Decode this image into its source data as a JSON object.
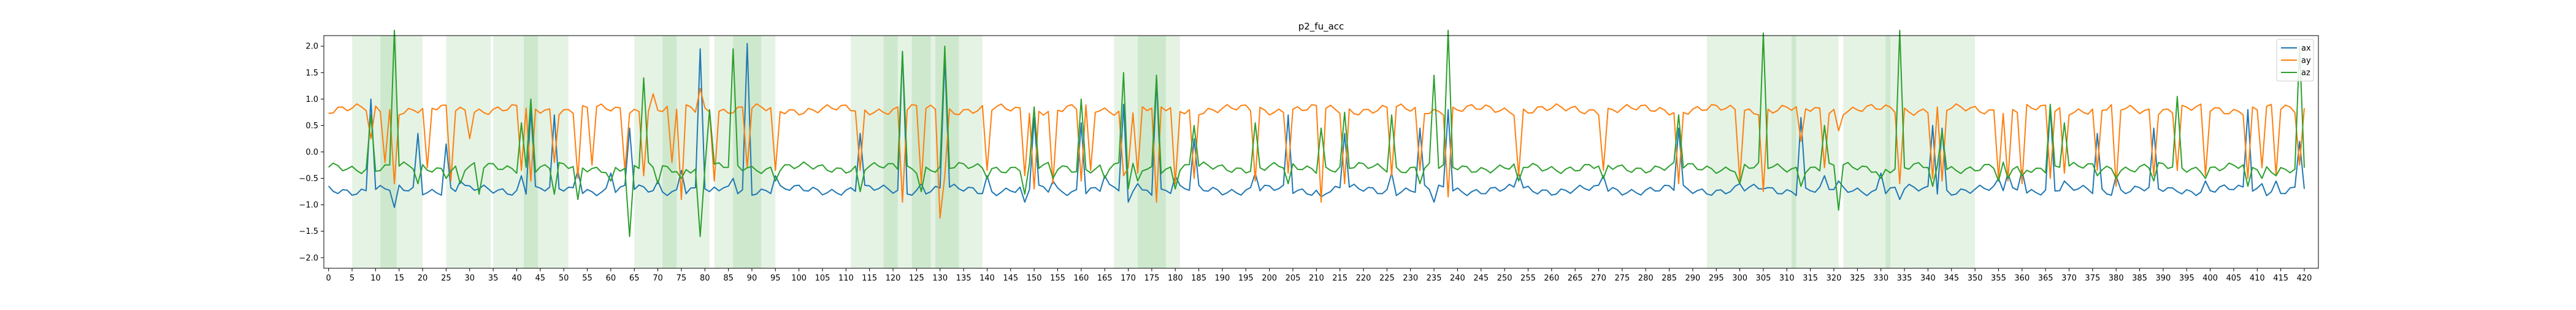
{
  "chart_data": {
    "type": "line",
    "title": "p2_fu_acc",
    "xlabel": "",
    "ylabel": "",
    "xlim": [
      -1,
      423
    ],
    "ylim": [
      -2.2,
      2.2
    ],
    "xticks": [
      0,
      5,
      10,
      15,
      20,
      25,
      30,
      35,
      40,
      45,
      50,
      55,
      60,
      65,
      70,
      75,
      80,
      85,
      90,
      95,
      100,
      105,
      110,
      115,
      120,
      125,
      130,
      135,
      140,
      145,
      150,
      155,
      160,
      165,
      170,
      175,
      180,
      185,
      190,
      195,
      200,
      205,
      210,
      215,
      220,
      225,
      230,
      235,
      240,
      245,
      250,
      255,
      260,
      265,
      270,
      275,
      280,
      285,
      290,
      295,
      300,
      305,
      310,
      315,
      320,
      325,
      330,
      335,
      340,
      345,
      350,
      355,
      360,
      365,
      370,
      375,
      380,
      385,
      390,
      395,
      400,
      405,
      410,
      415,
      420
    ],
    "yticks": [
      -2.0,
      -1.5,
      -1.0,
      -0.5,
      0.0,
      0.5,
      1.0,
      1.5,
      2.0
    ],
    "ytick_labels": [
      "−2.0",
      "−1.5",
      "−1.0",
      "−0.5",
      "0.0",
      "0.5",
      "1.0",
      "1.5",
      "2.0"
    ],
    "grid": false,
    "legend_position": "top-right",
    "shaded_regions": [
      [
        5,
        14.5
      ],
      [
        11,
        20
      ],
      [
        25,
        34.5
      ],
      [
        35,
        44.5
      ],
      [
        41.5,
        51
      ],
      [
        65,
        74
      ],
      [
        71,
        81
      ],
      [
        82,
        92
      ],
      [
        86,
        95
      ],
      [
        111,
        121
      ],
      [
        118,
        128
      ],
      [
        124,
        134
      ],
      [
        129,
        139
      ],
      [
        167,
        178
      ],
      [
        172,
        181
      ],
      [
        293,
        303
      ],
      [
        303,
        312
      ],
      [
        311,
        321
      ],
      [
        322,
        332
      ],
      [
        331,
        341
      ],
      [
        341,
        350
      ]
    ],
    "series": [
      {
        "name": "ax",
        "color": "#1f77b4",
        "base": -0.72,
        "spikes": [
          [
            9,
            1.0
          ],
          [
            14,
            -1.05
          ],
          [
            19,
            0.35
          ],
          [
            25,
            0.15
          ],
          [
            28,
            -0.55
          ],
          [
            32,
            -0.7
          ],
          [
            41,
            -0.45
          ],
          [
            43,
            0.8
          ],
          [
            48,
            0.7
          ],
          [
            53,
            -0.35
          ],
          [
            60,
            -0.4
          ],
          [
            64,
            0.45
          ],
          [
            70,
            -0.55
          ],
          [
            75,
            -0.35
          ],
          [
            79,
            1.95
          ],
          [
            81,
            -0.75
          ],
          [
            86,
            -0.5
          ],
          [
            89,
            2.05
          ],
          [
            95,
            -0.45
          ],
          [
            113,
            0.35
          ],
          [
            122,
            1.9
          ],
          [
            126,
            -0.6
          ],
          [
            131,
            1.8
          ],
          [
            140,
            -0.45
          ],
          [
            148,
            -0.95
          ],
          [
            150,
            0.65
          ],
          [
            154,
            -0.55
          ],
          [
            160,
            0.55
          ],
          [
            165,
            -0.45
          ],
          [
            169,
            0.9
          ],
          [
            170,
            -0.95
          ],
          [
            172,
            -0.6
          ],
          [
            176,
            1.35
          ],
          [
            180,
            -0.45
          ],
          [
            184,
            0.25
          ],
          [
            197,
            -0.4
          ],
          [
            204,
            0.7
          ],
          [
            211,
            -0.85
          ],
          [
            216,
            0.35
          ],
          [
            226,
            -0.4
          ],
          [
            232,
            0.45
          ],
          [
            235,
            -0.95
          ],
          [
            238,
            0.8
          ],
          [
            253,
            -0.4
          ],
          [
            271,
            -0.45
          ],
          [
            287,
            0.45
          ],
          [
            300,
            -0.6
          ],
          [
            305,
            -0.7
          ],
          [
            313,
            0.65
          ],
          [
            318,
            -0.45
          ],
          [
            321,
            -0.55
          ],
          [
            330,
            -0.4
          ],
          [
            334,
            -0.9
          ],
          [
            341,
            0.5
          ],
          [
            343,
            0.45
          ],
          [
            355,
            -0.5
          ],
          [
            357,
            -0.4
          ],
          [
            360,
            -0.35
          ],
          [
            366,
            0.85
          ],
          [
            369,
            -0.55
          ],
          [
            376,
            0.35
          ],
          [
            380,
            -0.45
          ],
          [
            388,
            0.45
          ],
          [
            393,
            -0.75
          ],
          [
            399,
            -0.55
          ],
          [
            408,
            0.8
          ],
          [
            411,
            -0.6
          ],
          [
            414,
            -0.55
          ],
          [
            419,
            0.2
          ]
        ]
      },
      {
        "name": "ay",
        "color": "#ff7f0e",
        "base": 0.8,
        "spikes": [
          [
            9,
            0.25
          ],
          [
            12,
            -0.2
          ],
          [
            14,
            -0.6
          ],
          [
            21,
            -0.3
          ],
          [
            26,
            -0.55
          ],
          [
            30,
            0.25
          ],
          [
            41,
            -0.35
          ],
          [
            43,
            -0.55
          ],
          [
            48,
            -0.2
          ],
          [
            53,
            -0.5
          ],
          [
            56,
            -0.25
          ],
          [
            63,
            -0.35
          ],
          [
            67,
            -0.45
          ],
          [
            69,
            1.1
          ],
          [
            73,
            -0.2
          ],
          [
            75,
            -0.9
          ],
          [
            79,
            1.2
          ],
          [
            82,
            -0.55
          ],
          [
            89,
            -0.3
          ],
          [
            95,
            -0.35
          ],
          [
            113,
            -0.35
          ],
          [
            122,
            -0.95
          ],
          [
            126,
            -0.6
          ],
          [
            130,
            -1.25
          ],
          [
            131,
            -0.45
          ],
          [
            140,
            -0.35
          ],
          [
            148,
            -0.45
          ],
          [
            150,
            -0.7
          ],
          [
            154,
            -0.6
          ],
          [
            160,
            -0.55
          ],
          [
            162,
            -0.35
          ],
          [
            169,
            -0.45
          ],
          [
            170,
            -0.3
          ],
          [
            172,
            -0.4
          ],
          [
            176,
            -0.95
          ],
          [
            180,
            -0.6
          ],
          [
            184,
            -0.5
          ],
          [
            197,
            -0.55
          ],
          [
            204,
            -0.4
          ],
          [
            211,
            -0.95
          ],
          [
            216,
            -0.6
          ],
          [
            226,
            -0.45
          ],
          [
            232,
            -0.35
          ],
          [
            238,
            -0.85
          ],
          [
            253,
            -0.45
          ],
          [
            271,
            -0.35
          ],
          [
            287,
            -0.6
          ],
          [
            300,
            -0.55
          ],
          [
            305,
            -0.75
          ],
          [
            313,
            0.2
          ],
          [
            318,
            -0.3
          ],
          [
            321,
            0.4
          ],
          [
            334,
            -0.6
          ],
          [
            341,
            -0.5
          ],
          [
            343,
            -0.55
          ],
          [
            355,
            -0.5
          ],
          [
            357,
            -0.55
          ],
          [
            360,
            -0.6
          ],
          [
            366,
            -0.5
          ],
          [
            369,
            -0.4
          ],
          [
            376,
            -0.35
          ],
          [
            380,
            -0.65
          ],
          [
            388,
            -0.45
          ],
          [
            393,
            -0.35
          ],
          [
            399,
            -0.45
          ],
          [
            408,
            -0.5
          ],
          [
            411,
            -0.3
          ],
          [
            414,
            -0.45
          ],
          [
            419,
            -0.25
          ]
        ]
      },
      {
        "name": "az",
        "color": "#2ca02c",
        "base": -0.3,
        "spikes": [
          [
            9,
            0.7
          ],
          [
            14,
            2.3
          ],
          [
            19,
            -0.6
          ],
          [
            25,
            -0.5
          ],
          [
            28,
            -0.6
          ],
          [
            32,
            -0.8
          ],
          [
            41,
            0.55
          ],
          [
            43,
            1.0
          ],
          [
            48,
            -0.8
          ],
          [
            53,
            -0.9
          ],
          [
            60,
            -0.55
          ],
          [
            64,
            -1.6
          ],
          [
            67,
            1.4
          ],
          [
            70,
            -0.6
          ],
          [
            75,
            -0.5
          ],
          [
            79,
            -1.6
          ],
          [
            81,
            0.8
          ],
          [
            86,
            1.95
          ],
          [
            89,
            -0.3
          ],
          [
            95,
            -0.55
          ],
          [
            113,
            -0.75
          ],
          [
            122,
            1.9
          ],
          [
            126,
            -0.75
          ],
          [
            131,
            2.0
          ],
          [
            140,
            -0.5
          ],
          [
            148,
            -0.8
          ],
          [
            150,
            0.85
          ],
          [
            154,
            -0.5
          ],
          [
            160,
            1.0
          ],
          [
            165,
            -0.5
          ],
          [
            169,
            1.5
          ],
          [
            170,
            -0.7
          ],
          [
            172,
            -0.55
          ],
          [
            176,
            1.45
          ],
          [
            180,
            -0.7
          ],
          [
            184,
            0.5
          ],
          [
            197,
            0.55
          ],
          [
            204,
            -0.6
          ],
          [
            211,
            0.45
          ],
          [
            216,
            0.75
          ],
          [
            226,
            0.7
          ],
          [
            232,
            -0.6
          ],
          [
            235,
            1.45
          ],
          [
            238,
            2.3
          ],
          [
            253,
            -0.55
          ],
          [
            271,
            -0.5
          ],
          [
            287,
            0.7
          ],
          [
            300,
            -0.6
          ],
          [
            305,
            2.25
          ],
          [
            313,
            -0.65
          ],
          [
            318,
            0.5
          ],
          [
            321,
            -1.1
          ],
          [
            330,
            -0.5
          ],
          [
            334,
            2.3
          ],
          [
            341,
            -0.65
          ],
          [
            343,
            0.4
          ],
          [
            355,
            -0.55
          ],
          [
            357,
            -0.5
          ],
          [
            360,
            -0.45
          ],
          [
            366,
            0.9
          ],
          [
            369,
            0.55
          ],
          [
            376,
            -0.45
          ],
          [
            380,
            -0.5
          ],
          [
            388,
            -0.55
          ],
          [
            393,
            1.05
          ],
          [
            399,
            -0.5
          ],
          [
            408,
            -0.65
          ],
          [
            411,
            -0.5
          ],
          [
            414,
            -0.45
          ],
          [
            419,
            2.0
          ]
        ]
      }
    ]
  }
}
